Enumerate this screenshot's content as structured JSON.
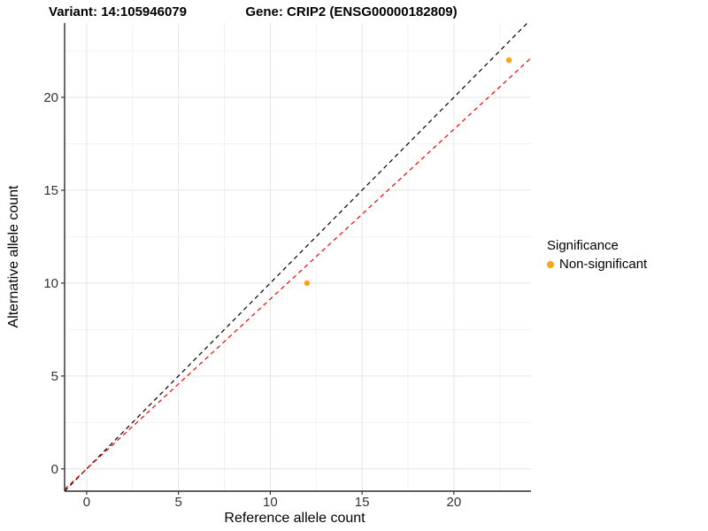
{
  "chart_data": {
    "type": "scatter",
    "titles": {
      "left": "Variant: 14:105946079",
      "right": "Gene: CRIP2 (ENSG00000182809)"
    },
    "xlabel": "Reference allele count",
    "ylabel": "Alternative allele count",
    "xlim": [
      -1.2,
      24.2
    ],
    "ylim": [
      -1.2,
      24.0
    ],
    "x_ticks": [
      0,
      5,
      10,
      15,
      20
    ],
    "y_ticks": [
      0,
      5,
      10,
      15,
      20
    ],
    "x_minor_ticks": [
      2.5,
      7.5,
      12.5,
      17.5,
      22.5
    ],
    "y_minor_ticks": [
      2.5,
      7.5,
      12.5,
      17.5,
      22.5
    ],
    "grid": true,
    "legend_position": "right",
    "points": [
      {
        "x": 12,
        "y": 10,
        "series": "Non-significant"
      },
      {
        "x": 23,
        "y": 22,
        "series": "Non-significant"
      }
    ],
    "lines": [
      {
        "name": "identity",
        "slope": 1,
        "intercept": 0,
        "color": "#000000",
        "style": "dashed"
      },
      {
        "name": "fit",
        "slope": 0.914,
        "intercept": 0,
        "color": "#FF0000",
        "style": "dashed"
      }
    ],
    "legend": {
      "title": "Significance",
      "items": [
        {
          "label": "Non-significant",
          "color": "#FFA318"
        }
      ]
    },
    "colors": {
      "point": "#FFA318",
      "grid_major": "#E4E4E4",
      "grid_minor": "#F2F2F2",
      "axis_line": "#2B2B2B",
      "tick": "#333333"
    }
  }
}
